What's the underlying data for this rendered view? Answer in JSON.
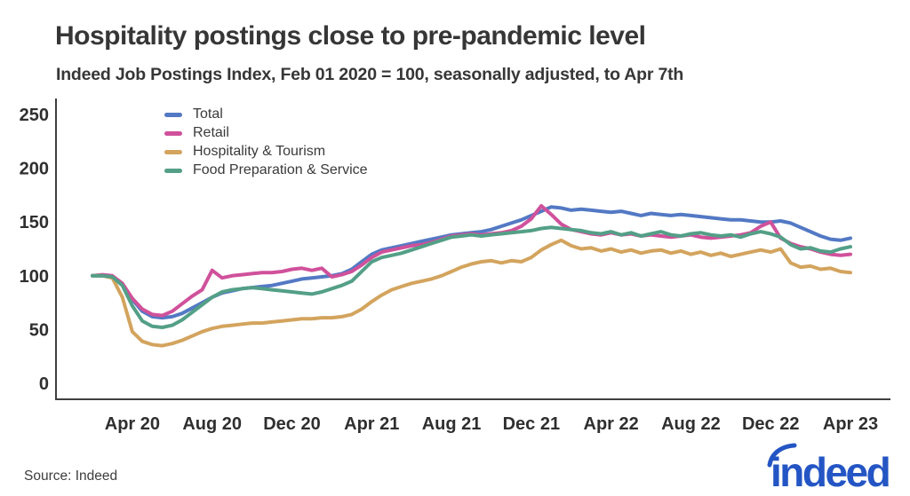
{
  "header": {
    "title": "Hospitality postings close to pre-pandemic level",
    "subtitle": "Indeed Job Postings Index, Feb 01 2020 = 100, seasonally adjusted, to Apr 7th"
  },
  "footer": {
    "source": "Source: Indeed",
    "logo_text": "indeed",
    "logo_color": "#2455c4"
  },
  "colors": {
    "axis": "#3f3f3f",
    "tick_text": "#2f2f2f",
    "title_text": "#363636"
  },
  "chart_data": {
    "type": "line",
    "title": "Hospitality postings close to pre-pandemic level",
    "subtitle": "Indeed Job Postings Index, Feb 01 2020 = 100, seasonally adjusted, to Apr 7th",
    "x_unit": "months since Feb 01 2020",
    "x_start_label": "Feb 01 2020",
    "x_end_label": "Apr 7 2023",
    "x_step_months": 0.5,
    "ylim": [
      0,
      250
    ],
    "y_ticks": [
      0,
      50,
      100,
      150,
      200,
      250
    ],
    "x_ticks": [
      {
        "label": "Apr 20",
        "month": 2
      },
      {
        "label": "Aug 20",
        "month": 6
      },
      {
        "label": "Dec 20",
        "month": 10
      },
      {
        "label": "Apr 21",
        "month": 14
      },
      {
        "label": "Aug 21",
        "month": 18
      },
      {
        "label": "Dec 21",
        "month": 22
      },
      {
        "label": "Apr 22",
        "month": 26
      },
      {
        "label": "Aug 22",
        "month": 30
      },
      {
        "label": "Dec 22",
        "month": 34
      },
      {
        "label": "Apr 23",
        "month": 38
      }
    ],
    "legend_position": "top-left-inside",
    "grid": false,
    "series": [
      {
        "name": "Total",
        "color": "#5379c4",
        "values": [
          100,
          100,
          99,
          92,
          78,
          67,
          62,
          61,
          62,
          65,
          70,
          75,
          80,
          84,
          86,
          88,
          89,
          90,
          91,
          93,
          95,
          97,
          98,
          99,
          100,
          102,
          106,
          113,
          120,
          124,
          126,
          128,
          130,
          132,
          134,
          136,
          138,
          139,
          140,
          141,
          143,
          146,
          149,
          152,
          156,
          160,
          164,
          163,
          161,
          162,
          161,
          160,
          159,
          160,
          158,
          156,
          158,
          157,
          156,
          157,
          156,
          155,
          154,
          153,
          152,
          152,
          151,
          150,
          150,
          151,
          149,
          145,
          141,
          137,
          134,
          133,
          135
        ]
      },
      {
        "name": "Retail",
        "color": "#d0519b",
        "values": [
          100,
          101,
          100,
          93,
          79,
          69,
          64,
          63,
          67,
          74,
          81,
          87,
          105,
          98,
          100,
          101,
          102,
          103,
          103,
          104,
          106,
          107,
          105,
          107,
          99,
          101,
          104,
          110,
          117,
          122,
          124,
          126,
          128,
          129,
          131,
          134,
          137,
          138,
          139,
          138,
          139,
          140,
          142,
          146,
          153,
          165,
          157,
          148,
          143,
          141,
          139,
          138,
          140,
          138,
          139,
          137,
          138,
          137,
          136,
          137,
          138,
          136,
          135,
          136,
          137,
          138,
          140,
          146,
          150,
          135,
          130,
          127,
          125,
          122,
          120,
          119,
          120
        ]
      },
      {
        "name": "Hospitality & Tourism",
        "color": "#d3a45e",
        "values": [
          100,
          100,
          98,
          80,
          48,
          39,
          36,
          35,
          37,
          40,
          44,
          48,
          51,
          53,
          54,
          55,
          56,
          56,
          57,
          58,
          59,
          60,
          60,
          61,
          61,
          62,
          64,
          69,
          76,
          82,
          87,
          90,
          93,
          95,
          97,
          100,
          104,
          108,
          111,
          113,
          114,
          112,
          114,
          113,
          117,
          124,
          129,
          133,
          128,
          125,
          126,
          123,
          125,
          122,
          124,
          121,
          123,
          124,
          121,
          123,
          120,
          122,
          119,
          121,
          118,
          120,
          122,
          124,
          122,
          125,
          112,
          108,
          109,
          106,
          107,
          104,
          103
        ]
      },
      {
        "name": "Food Preparation & Service",
        "color": "#539f87",
        "values": [
          100,
          100,
          99,
          91,
          72,
          58,
          53,
          52,
          54,
          59,
          66,
          73,
          80,
          85,
          87,
          88,
          89,
          88,
          87,
          86,
          85,
          84,
          83,
          85,
          88,
          91,
          95,
          104,
          113,
          117,
          119,
          121,
          124,
          127,
          130,
          133,
          136,
          137,
          138,
          137,
          138,
          139,
          140,
          141,
          142,
          144,
          145,
          144,
          143,
          142,
          140,
          139,
          141,
          138,
          140,
          137,
          139,
          141,
          138,
          137,
          139,
          140,
          138,
          137,
          138,
          136,
          139,
          141,
          139,
          136,
          129,
          125,
          126,
          123,
          122,
          125,
          127
        ]
      }
    ]
  }
}
